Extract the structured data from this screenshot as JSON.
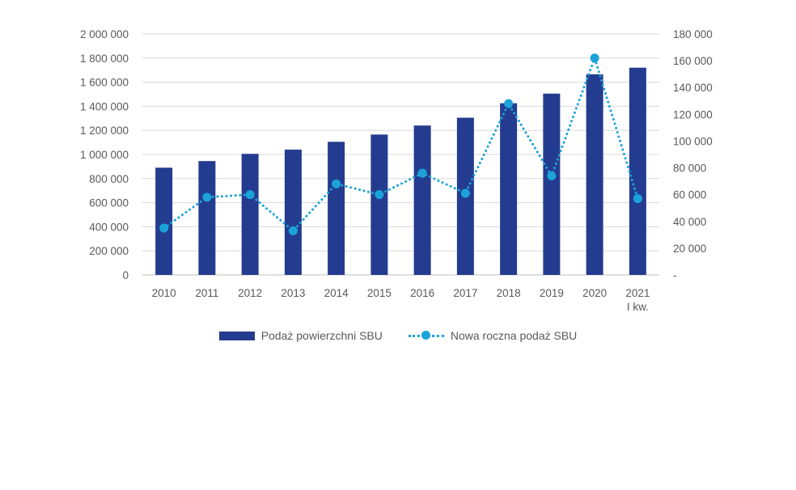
{
  "chart_data": {
    "type": "bar",
    "categories": [
      [
        "2010"
      ],
      [
        "2011"
      ],
      [
        "2012"
      ],
      [
        "2013"
      ],
      [
        "2014"
      ],
      [
        "2015"
      ],
      [
        "2016"
      ],
      [
        "2017"
      ],
      [
        "2018"
      ],
      [
        "2019"
      ],
      [
        "2020"
      ],
      [
        "2021",
        "I kw."
      ]
    ],
    "series": [
      {
        "name": "Podaż powierzchni SBU",
        "type": "bar",
        "axis": "left",
        "color": "#243C8F",
        "values": [
          890000,
          945000,
          1005000,
          1040000,
          1105000,
          1165000,
          1240000,
          1305000,
          1425000,
          1505000,
          1665000,
          1720000
        ]
      },
      {
        "name": "Nowa roczna podaż SBU",
        "type": "line",
        "style": "dotted-with-markers",
        "axis": "right",
        "color": "#1BA3D9",
        "values": [
          35000,
          58000,
          60000,
          33000,
          68000,
          60000,
          76000,
          61000,
          128000,
          74000,
          162000,
          57000
        ]
      }
    ],
    "y_left": {
      "min": 0,
      "max": 2000000,
      "ticks": [
        0,
        200000,
        400000,
        600000,
        800000,
        1000000,
        1200000,
        1400000,
        1600000,
        1800000,
        2000000
      ],
      "tick_labels": [
        "0",
        "200 000",
        "400 000",
        "600 000",
        "800 000",
        "1 000 000",
        "1 200 000",
        "1 400 000",
        "1 600 000",
        "1 800 000",
        "2 000 000"
      ]
    },
    "y_right": {
      "min": 0,
      "max": 180000,
      "ticks": [
        0,
        20000,
        40000,
        60000,
        80000,
        100000,
        120000,
        140000,
        160000,
        180000
      ],
      "tick_labels": [
        "-",
        "20 000",
        "40 000",
        "60 000",
        "80 000",
        "100 000",
        "120 000",
        "140 000",
        "160 000",
        "180 000"
      ]
    },
    "grid": "horizontal",
    "legend_position": "bottom"
  }
}
